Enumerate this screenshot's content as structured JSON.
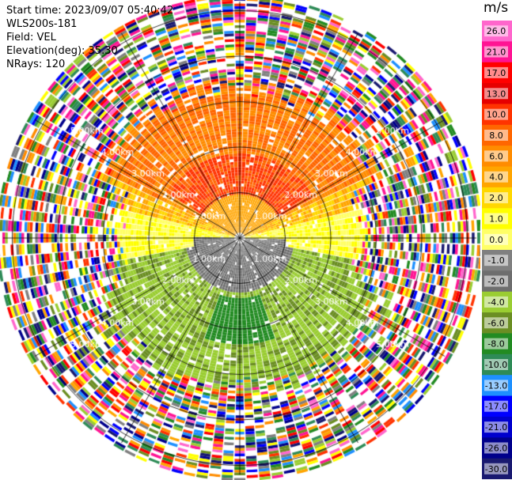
{
  "info": {
    "start_time": "Start time: 2023/09/07 05:40:42",
    "instrument": "WLS200s-181",
    "field": "Field: VEL",
    "elevation": "Elevation(deg): 35.30",
    "nrays": "NRays: 120"
  },
  "chart_data": {
    "type": "heatmap",
    "projection": "polar PPI",
    "field": "VEL",
    "units": "m/s",
    "nrays": 120,
    "range_rings_km": [
      1,
      2,
      3,
      4,
      5
    ],
    "range_labels": [
      "1.00km",
      "2.00km",
      "3.00km",
      "4.00km",
      "5.00km"
    ],
    "colorbar": {
      "unit": "m/s",
      "ticks": [
        "26.0",
        "21.0",
        "17.0",
        "13.0",
        "10.0",
        "8.0",
        "6.0",
        "4.0",
        "2.0",
        "1.0",
        "0.0",
        "-1.0",
        "-2.0",
        "-4.0",
        "-6.0",
        "-8.0",
        "-10.0",
        "-13.0",
        "-17.0",
        "-21.0",
        "-26.0",
        "-30.0"
      ],
      "colors": [
        "#ff66cc",
        "#ff1493",
        "#ff0000",
        "#e60000",
        "#ff3300",
        "#ff6600",
        "#ff8c00",
        "#ffa500",
        "#ffd700",
        "#ffff00",
        "#ffff66",
        "#808080",
        "#6e6e6e",
        "#9acd32",
        "#6b8e23",
        "#228b22",
        "#2e8b57",
        "#1e90ff",
        "#0000ff",
        "#0000cd",
        "#00008b",
        "#191970"
      ]
    },
    "sectors": [
      {
        "region": "north, 0-1.8 km",
        "velocity_ms": [
          2,
          4
        ]
      },
      {
        "region": "north, 1.8-3.3 km",
        "velocity_ms": [
          6,
          10
        ]
      },
      {
        "region": "east/west near horizontal",
        "velocity_ms": [
          -1,
          1
        ]
      },
      {
        "region": "south, 0-3.3 km",
        "velocity_ms": [
          -8,
          -2
        ]
      },
      {
        "region": "beyond 3.3 km",
        "velocity_ms": "noise"
      }
    ]
  }
}
